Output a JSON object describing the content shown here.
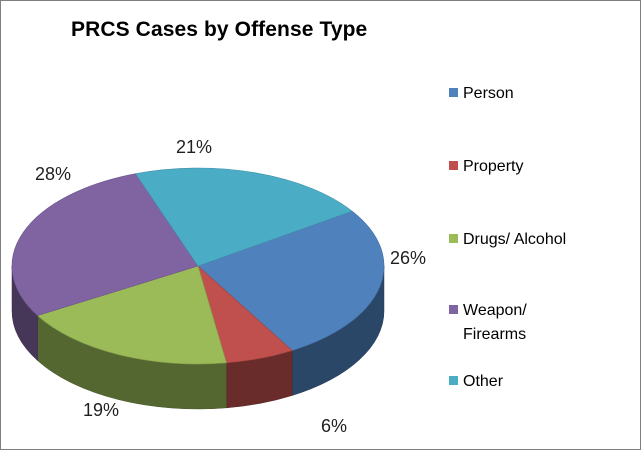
{
  "chart_data": {
    "type": "pie",
    "title": "PRCS Cases by Offense Type",
    "categories": [
      "Person",
      "Property",
      "Drugs/ Alcohol",
      "Weapon/ Firearms",
      "Other"
    ],
    "values": [
      26,
      6,
      19,
      28,
      21
    ],
    "labels": [
      "26%",
      "6%",
      "19%",
      "28%",
      "21%"
    ],
    "colors": [
      "#4f81bd",
      "#c0504d",
      "#9bbb59",
      "#8064a2",
      "#4bacc6"
    ],
    "legend_position": "right",
    "style": "3d"
  }
}
